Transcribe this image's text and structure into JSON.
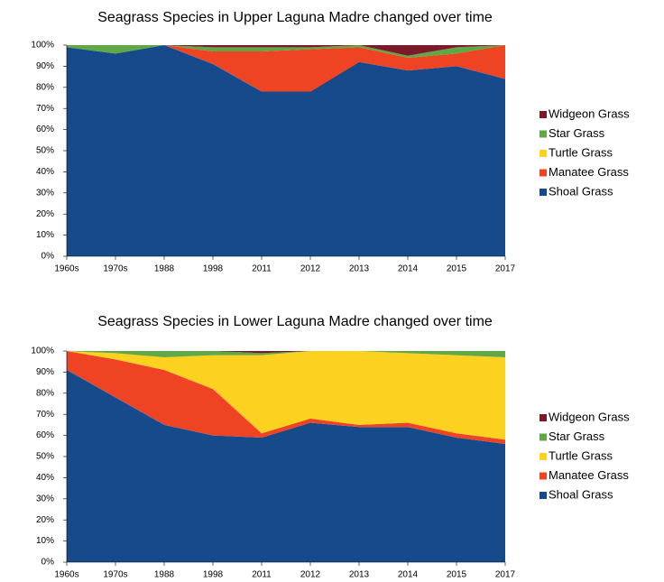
{
  "chart_data": [
    {
      "type": "stacked_area",
      "title": "Seagrass Species in Upper Laguna Madre changed over time",
      "categories": [
        "1960s",
        "1970s",
        "1988",
        "1998",
        "2011",
        "2012",
        "2013",
        "2014",
        "2015",
        "2017"
      ],
      "ylim": [
        0,
        100
      ],
      "yticks": [
        {
          "value": 0,
          "label": "0%"
        },
        {
          "value": 10,
          "label": "10%"
        },
        {
          "value": 20,
          "label": "20%"
        },
        {
          "value": 30,
          "label": "30%"
        },
        {
          "value": 40,
          "label": "40%"
        },
        {
          "value": 50,
          "label": "50%"
        },
        {
          "value": 60,
          "label": "60%"
        },
        {
          "value": 70,
          "label": "70%"
        },
        {
          "value": 80,
          "label": "80%"
        },
        {
          "value": 90,
          "label": "90%"
        },
        {
          "value": 100,
          "label": "100%"
        }
      ],
      "legend": "right",
      "series": [
        {
          "name": "Shoal Grass",
          "color": "#174a8b",
          "values": [
            99,
            96,
            100,
            91,
            78,
            78,
            92,
            88,
            90,
            84
          ]
        },
        {
          "name": "Manatee Grass",
          "color": "#ee4423",
          "values": [
            0,
            0,
            0,
            6,
            19,
            20,
            7,
            6,
            6,
            16
          ]
        },
        {
          "name": "Turtle Grass",
          "color": "#fdd11f",
          "values": [
            0,
            0,
            0,
            0,
            0,
            0,
            0,
            0,
            0,
            0
          ]
        },
        {
          "name": "Star Grass",
          "color": "#5fa845",
          "values": [
            1,
            4,
            0,
            2,
            2,
            1,
            1,
            1,
            3,
            0
          ]
        },
        {
          "name": "Widgeon Grass",
          "color": "#7b1a2a",
          "values": [
            0,
            0,
            0,
            1,
            1,
            1,
            0,
            5,
            1,
            0
          ]
        }
      ]
    },
    {
      "type": "stacked_area",
      "title": "Seagrass Species in Lower Laguna Madre changed over time",
      "categories": [
        "1960s",
        "1970s",
        "1988",
        "1998",
        "2011",
        "2012",
        "2013",
        "2014",
        "2015",
        "2017"
      ],
      "ylim": [
        0,
        100
      ],
      "yticks": [
        {
          "value": 0,
          "label": "0%"
        },
        {
          "value": 10,
          "label": "10%"
        },
        {
          "value": 20,
          "label": "20%"
        },
        {
          "value": 30,
          "label": "30%"
        },
        {
          "value": 40,
          "label": "40%"
        },
        {
          "value": 50,
          "label": "50%"
        },
        {
          "value": 60,
          "label": "60%"
        },
        {
          "value": 70,
          "label": "70%"
        },
        {
          "value": 80,
          "label": "80%"
        },
        {
          "value": 90,
          "label": "90%"
        },
        {
          "value": 100,
          "label": "100%"
        }
      ],
      "legend": "right",
      "series": [
        {
          "name": "Shoal Grass",
          "color": "#174a8b",
          "values": [
            91,
            78,
            65,
            60,
            59,
            66,
            64,
            64,
            59,
            56
          ]
        },
        {
          "name": "Manatee Grass",
          "color": "#ee4423",
          "values": [
            9,
            18,
            26,
            22,
            2,
            2,
            1,
            2,
            2,
            2
          ]
        },
        {
          "name": "Turtle Grass",
          "color": "#fdd11f",
          "values": [
            0,
            3,
            6,
            16,
            37,
            32,
            35,
            33,
            37,
            39
          ]
        },
        {
          "name": "Star Grass",
          "color": "#5fa845",
          "values": [
            0,
            1,
            3,
            2,
            1,
            0,
            0,
            1,
            2,
            3
          ]
        },
        {
          "name": "Widgeon Grass",
          "color": "#7b1a2a",
          "values": [
            0,
            0,
            0,
            0,
            1,
            0,
            0,
            0,
            0,
            0
          ]
        }
      ]
    }
  ]
}
